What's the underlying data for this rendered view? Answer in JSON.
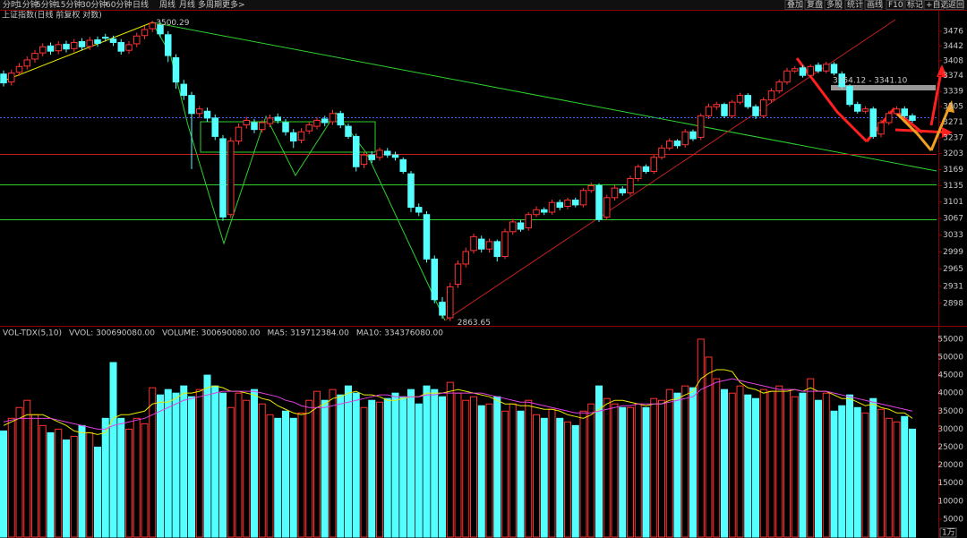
{
  "toolbar": {
    "left": [
      "分时",
      "1分钟",
      "5分钟",
      "15分钟",
      "30分钟",
      "60分钟",
      "日线",
      "周线",
      "月线",
      "多周期",
      "更多>"
    ],
    "right": [
      "叠加",
      "复盘",
      "多股",
      "统计",
      "画线",
      "F10",
      "标记",
      "+自选",
      "返回"
    ]
  },
  "chart_data": [
    {
      "type": "candlestick",
      "title": "上证指数(日线 前复权 对数)",
      "log": true,
      "ylim": [
        2858,
        3524
      ],
      "yticks": [
        3476,
        3442,
        3408,
        3374,
        3339,
        3305,
        3271,
        3237,
        3203,
        3169,
        3135,
        3101,
        3067,
        3033,
        2999,
        2965,
        2931,
        2898
      ],
      "up_color": "#ff3232",
      "down_color": "#54ffff",
      "high_label": "3500.29",
      "low_label": "2863.65",
      "range_label": "3354.12 - 3341.10",
      "open": [
        3378,
        3360,
        3382,
        3396,
        3412,
        3426,
        3442,
        3431,
        3446,
        3436,
        3452,
        3441,
        3456,
        3462,
        3458,
        3450,
        3432,
        3447,
        3466,
        3482,
        3490,
        3468,
        3415,
        3355,
        3330,
        3290,
        3295,
        3280,
        3235,
        3075,
        3230,
        3265,
        3270,
        3255,
        3268,
        3282,
        3270,
        3248,
        3232,
        3252,
        3262,
        3278,
        3272,
        3290,
        3262,
        3240,
        3180,
        3200,
        3195,
        3208,
        3200,
        3190,
        3160,
        3090,
        3075,
        2985,
        2900,
        2870,
        2935,
        2975,
        3002,
        3025,
        3005,
        3020,
        2990,
        3040,
        3058,
        3048,
        3075,
        3085,
        3080,
        3100,
        3092,
        3105,
        3095,
        3125,
        3135,
        3070,
        3110,
        3128,
        3120,
        3150,
        3175,
        3165,
        3195,
        3215,
        3230,
        3222,
        3250,
        3238,
        3285,
        3305,
        3310,
        3285,
        3315,
        3330,
        3305,
        3285,
        3320,
        3340,
        3360,
        3385,
        3392,
        3375,
        3398,
        3385,
        3400,
        3378,
        3350,
        3310,
        3295,
        3300,
        3245,
        3270,
        3290,
        3300,
        3285
      ],
      "high": [
        3386,
        3388,
        3403,
        3418,
        3433,
        3448,
        3450,
        3453,
        3454,
        3458,
        3460,
        3463,
        3464,
        3470,
        3466,
        3458,
        3453,
        3473,
        3488,
        3500.29,
        3498,
        3476,
        3423,
        3365,
        3338,
        3306,
        3303,
        3288,
        3243,
        3238,
        3268,
        3283,
        3278,
        3275,
        3288,
        3290,
        3278,
        3256,
        3258,
        3272,
        3282,
        3285,
        3298,
        3296,
        3268,
        3246,
        3207,
        3208,
        3216,
        3215,
        3207,
        3195,
        3166,
        3098,
        3082,
        2992,
        2910,
        2938,
        2982,
        3008,
        3036,
        3032,
        3026,
        3024,
        3046,
        3066,
        3064,
        3080,
        3092,
        3090,
        3106,
        3106,
        3110,
        3110,
        3130,
        3142,
        3140,
        3116,
        3136,
        3134,
        3156,
        3180,
        3180,
        3200,
        3222,
        3236,
        3234,
        3256,
        3255,
        3290,
        3312,
        3316,
        3314,
        3320,
        3336,
        3335,
        3310,
        3326,
        3346,
        3366,
        3392,
        3396,
        3398,
        3400,
        3404,
        3406,
        3405,
        3384,
        3355,
        3316,
        3306,
        3305,
        3276,
        3296,
        3306,
        3306,
        3290
      ],
      "low": [
        3350,
        3352,
        3374,
        3388,
        3404,
        3418,
        3422,
        3423,
        3427,
        3428,
        3432,
        3433,
        3440,
        3452,
        3442,
        3422,
        3424,
        3439,
        3458,
        3474,
        3462,
        3405,
        3345,
        3320,
        3170,
        3280,
        3272,
        3232,
        3062,
        3068,
        3222,
        3257,
        3247,
        3248,
        3260,
        3268,
        3242,
        3215,
        3225,
        3245,
        3255,
        3262,
        3265,
        3258,
        3235,
        3165,
        3172,
        3183,
        3188,
        3194,
        3188,
        3160,
        3080,
        3072,
        2978,
        2898,
        2868,
        2863.65,
        2928,
        2968,
        2996,
        2998,
        2998,
        2980,
        2985,
        3034,
        3040,
        3042,
        3070,
        3074,
        3075,
        3084,
        3086,
        3090,
        3090,
        3120,
        3060,
        3064,
        3104,
        3114,
        3114,
        3144,
        3160,
        3160,
        3190,
        3210,
        3214,
        3216,
        3230,
        3232,
        3278,
        3298,
        3280,
        3280,
        3310,
        3300,
        3278,
        3280,
        3314,
        3334,
        3354,
        3380,
        3370,
        3370,
        3380,
        3380,
        3375,
        3345,
        3305,
        3290,
        3290,
        3235,
        3238,
        3265,
        3285,
        3280,
        3270
      ],
      "close": [
        3358,
        3380,
        3395,
        3410,
        3425,
        3440,
        3430,
        3445,
        3435,
        3450,
        3440,
        3455,
        3448,
        3460,
        3450,
        3430,
        3445,
        3465,
        3480,
        3495,
        3470,
        3420,
        3360,
        3330,
        3290,
        3300,
        3280,
        3240,
        3070,
        3230,
        3260,
        3275,
        3255,
        3270,
        3280,
        3275,
        3250,
        3230,
        3250,
        3265,
        3275,
        3270,
        3290,
        3265,
        3240,
        3175,
        3200,
        3190,
        3210,
        3200,
        3195,
        3165,
        3090,
        3080,
        2985,
        2905,
        2875,
        2930,
        2975,
        3000,
        3030,
        3005,
        3020,
        2990,
        3040,
        3060,
        3045,
        3075,
        3085,
        3080,
        3100,
        3090,
        3105,
        3095,
        3125,
        3135,
        3065,
        3110,
        3130,
        3120,
        3150,
        3175,
        3165,
        3195,
        3215,
        3230,
        3220,
        3250,
        3235,
        3285,
        3305,
        3310,
        3285,
        3315,
        3330,
        3305,
        3285,
        3320,
        3340,
        3360,
        3385,
        3390,
        3375,
        3395,
        3385,
        3400,
        3380,
        3350,
        3310,
        3295,
        3300,
        3240,
        3270,
        3290,
        3300,
        3285,
        3275
      ]
    },
    {
      "type": "bar",
      "header": [
        {
          "text": "VOL-TDX(5,10)",
          "color": "#c8c8c8"
        },
        {
          "text": "VVOL: 300690080.00",
          "color": "#e8e8e8"
        },
        {
          "text": "VOLUME: 300690080.00",
          "color": "#e8e800"
        },
        {
          "text": "MA5: 319712384.00",
          "color": "#e8e800"
        },
        {
          "text": "MA10: 334376080.00",
          "color": "#e040e0"
        }
      ],
      "unit_label": "1万",
      "ylim": [
        0,
        57700
      ],
      "yticks": [
        55000,
        50000,
        45000,
        40000,
        35000,
        30000,
        25000,
        20000,
        15000,
        10000,
        5000
      ],
      "values": [
        29500,
        33000,
        36000,
        38000,
        34000,
        31000,
        29000,
        30000,
        27000,
        28000,
        31000,
        29000,
        25000,
        33000,
        48500,
        33000,
        30000,
        33000,
        31500,
        41500,
        39500,
        41000,
        40000,
        42000,
        39000,
        41000,
        45000,
        42000,
        40000,
        36000,
        40000,
        38000,
        41000,
        37000,
        34000,
        33000,
        35000,
        33000,
        34500,
        38000,
        40500,
        38000,
        41000,
        39500,
        42000,
        40000,
        36000,
        38000,
        37500,
        38500,
        40000,
        39000,
        41000,
        37000,
        42000,
        41000,
        39000,
        43000,
        40000,
        38000,
        39000,
        36500,
        37000,
        39000,
        35000,
        37000,
        35000,
        38000,
        34000,
        33000,
        35500,
        33000,
        32000,
        31000,
        35000,
        37000,
        42000,
        38500,
        37000,
        36000,
        36000,
        37000,
        36000,
        38500,
        38000,
        41000,
        40000,
        42000,
        41500,
        55000,
        50000,
        44000,
        41000,
        40000,
        42000,
        39500,
        38500,
        41000,
        40500,
        42000,
        41000,
        39000,
        40000,
        44000,
        38000,
        40000,
        35000,
        36500,
        39500,
        36000,
        34500,
        38500,
        35500,
        33000,
        32000,
        33500,
        30000
      ],
      "lines": [
        {
          "color": "#e8e800",
          "values": [
            31000,
            32000,
            33000,
            34000,
            34000,
            34000,
            33000,
            32000,
            31000,
            29500,
            29000,
            29000,
            28500,
            29000,
            33000,
            34000,
            34000,
            34500,
            35000,
            37000,
            37500,
            37500,
            38500,
            40000,
            40000,
            40500,
            41500,
            42000,
            41500,
            40500,
            40500,
            40000,
            39500,
            38500,
            38000,
            36500,
            35500,
            34500,
            34000,
            34500,
            36000,
            37000,
            38500,
            39000,
            40000,
            40500,
            39500,
            39500,
            39000,
            38000,
            38000,
            38500,
            39000,
            39000,
            40000,
            40000,
            40000,
            40500,
            41000,
            40500,
            40000,
            39500,
            39000,
            38000,
            37000,
            37000,
            36500,
            36500,
            36000,
            35500,
            35500,
            35000,
            34000,
            33500,
            33000,
            34000,
            35500,
            37000,
            38000,
            38000,
            37500,
            37000,
            36500,
            37000,
            37000,
            38000,
            38500,
            39500,
            40500,
            44000,
            45500,
            46500,
            46500,
            46000,
            43000,
            41500,
            41000,
            40000,
            40500,
            40500,
            40500,
            41000,
            40500,
            41500,
            40500,
            40500,
            39500,
            38500,
            38500,
            37500,
            36500,
            37000,
            36000,
            35500,
            34500,
            34500,
            33000
          ]
        },
        {
          "color": "#e040e0",
          "values": [
            32000,
            32500,
            33000,
            33000,
            33000,
            33000,
            33000,
            32500,
            32000,
            31500,
            31000,
            30500,
            30000,
            30000,
            31000,
            31500,
            32000,
            32500,
            33000,
            34000,
            35000,
            36000,
            37000,
            38000,
            38500,
            39000,
            39500,
            40000,
            40500,
            40500,
            40500,
            40500,
            40500,
            40000,
            39500,
            39000,
            38000,
            37500,
            36500,
            36000,
            36000,
            36000,
            36500,
            37000,
            37500,
            38000,
            38500,
            39000,
            39500,
            39500,
            39000,
            39000,
            39000,
            39000,
            39500,
            39500,
            40000,
            40000,
            40000,
            40000,
            40000,
            40000,
            39500,
            39000,
            38500,
            38000,
            37500,
            37500,
            37000,
            36500,
            36000,
            35500,
            35000,
            34500,
            34500,
            34500,
            35000,
            35500,
            36000,
            36500,
            36500,
            37000,
            37000,
            37000,
            37000,
            37500,
            38000,
            38500,
            39000,
            41000,
            42000,
            43000,
            43500,
            44000,
            43500,
            43000,
            42500,
            42000,
            41500,
            41000,
            41000,
            41000,
            40500,
            40500,
            40500,
            40500,
            40000,
            39500,
            39000,
            38500,
            38000,
            37500,
            37000,
            36500,
            36000,
            35500,
            35000
          ]
        }
      ]
    }
  ]
}
